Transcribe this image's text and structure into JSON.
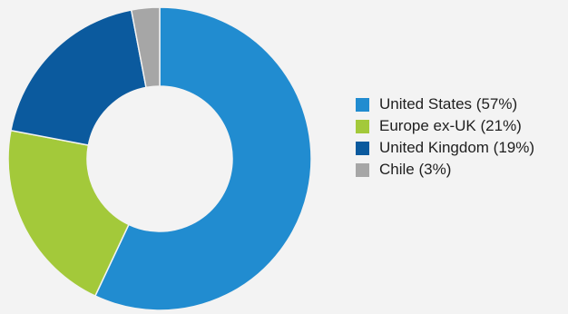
{
  "chart_data": {
    "type": "pie",
    "title": "",
    "labels": [
      "United States",
      "Europe ex-UK",
      "United Kingdom",
      "Chile"
    ],
    "values": [
      57,
      21,
      19,
      3
    ],
    "colors": [
      "#218cd0",
      "#a3c93a",
      "#0b5a9e",
      "#a6a6a6"
    ],
    "donut": true,
    "legend_placement": "right",
    "legend": [
      {
        "text": "United States (57%)",
        "color": "#218cd0"
      },
      {
        "text": "Europe ex-UK (21%)",
        "color": "#a3c93a"
      },
      {
        "text": "United Kingdom (19%)",
        "color": "#0b5a9e"
      },
      {
        "text": "Chile (3%)",
        "color": "#a6a6a6"
      }
    ]
  },
  "background_color": "#f3f3f3"
}
